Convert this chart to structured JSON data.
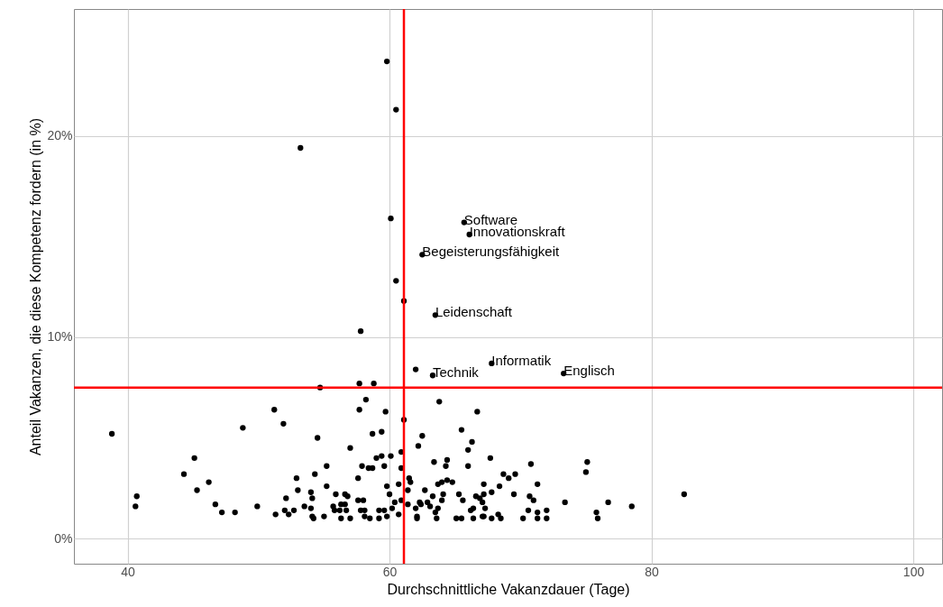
{
  "chart_data": {
    "type": "scatter",
    "xlabel": "Durchschnittliche Vakanzdauer (Tage)",
    "ylabel": "Anteil Vakanzen, die diese Kompetenz fordern (in %)",
    "xlim": [
      35.9,
      102.2
    ],
    "ylim": [
      -1.25,
      26.3
    ],
    "xticks": [
      40,
      60,
      80,
      100
    ],
    "yticks": [
      {
        "value": 0,
        "label": "0%"
      },
      {
        "value": 10,
        "label": "10%"
      },
      {
        "value": 20,
        "label": "20%"
      }
    ],
    "grid": true,
    "marker": "circle",
    "series": [
      {
        "color": "#000000",
        "x": [
          65.7,
          66.1,
          62.5,
          63.5,
          67.8,
          73.3,
          63.3,
          59.8,
          60.5,
          53.2,
          60.1,
          60.5,
          61.1,
          57.8,
          62.0,
          38.8,
          40.7,
          40.6,
          45.1,
          44.3,
          46.2,
          45.3,
          46.7,
          47.2,
          48.2,
          48.8,
          49.9,
          51.2,
          51.9,
          51.3,
          52.1,
          52.0,
          52.3,
          52.7,
          52.9,
          53.0,
          53.5,
          54.7,
          57.7,
          58.8,
          58.2,
          57.7,
          59.7,
          61.1,
          54.5,
          58.7,
          59.4,
          57.0,
          59.0,
          59.4,
          60.1,
          60.9,
          55.2,
          54.3,
          57.9,
          58.4,
          58.7,
          59.6,
          60.9,
          62.5,
          62.2,
          57.6,
          55.2,
          54.0,
          54.1,
          55.9,
          56.6,
          56.8,
          59.8,
          60.0,
          60.7,
          61.5,
          61.6,
          61.4,
          57.6,
          58.0,
          60.4,
          60.9,
          61.4,
          62.3,
          62.4,
          54.0,
          55.7,
          56.3,
          56.6,
          56.7,
          55.8,
          56.2,
          57.8,
          58.1,
          59.2,
          59.6,
          60.2,
          62.0,
          54.1,
          54.2,
          55.0,
          56.3,
          57.0,
          58.1,
          58.5,
          59.2,
          59.8,
          60.7,
          62.1,
          62.1,
          63.8,
          66.7,
          65.5,
          66.3,
          66.0,
          63.4,
          64.4,
          64.3,
          66.0,
          67.7,
          68.7,
          69.1,
          69.6,
          70.8,
          71.3,
          63.7,
          64.0,
          64.4,
          64.8,
          62.7,
          67.2,
          64.1,
          63.3,
          64.0,
          65.3,
          65.6,
          66.6,
          67.2,
          67.8,
          68.4,
          69.5,
          70.7,
          71.0,
          62.9,
          63.1,
          63.7,
          63.5,
          66.2,
          66.4,
          66.9,
          67.1,
          67.3,
          70.6,
          71.3,
          72.0,
          63.6,
          65.1,
          65.5,
          66.4,
          67.1,
          67.2,
          67.8,
          68.3,
          68.5,
          70.2,
          71.3,
          72.0,
          75.1,
          75.0,
          73.4,
          75.8,
          75.9,
          76.7,
          78.5,
          82.5
        ],
        "values": [
          15.7,
          15.1,
          14.1,
          11.1,
          8.7,
          8.2,
          8.1,
          23.7,
          21.3,
          19.4,
          15.9,
          12.8,
          11.8,
          10.3,
          8.4,
          5.2,
          2.1,
          1.6,
          4.0,
          3.2,
          2.8,
          2.4,
          1.7,
          1.3,
          1.3,
          5.5,
          1.6,
          6.4,
          5.7,
          1.2,
          2.0,
          1.4,
          1.2,
          1.4,
          3.0,
          2.4,
          1.6,
          7.5,
          7.7,
          7.7,
          6.9,
          6.4,
          6.3,
          5.9,
          5.0,
          5.2,
          5.3,
          4.5,
          4.0,
          4.1,
          4.1,
          4.3,
          3.6,
          3.2,
          3.6,
          3.5,
          3.5,
          3.6,
          3.5,
          5.1,
          4.6,
          3.0,
          2.6,
          2.3,
          2.0,
          2.2,
          2.2,
          2.1,
          2.6,
          2.2,
          2.7,
          3.0,
          2.8,
          2.4,
          1.9,
          1.9,
          1.8,
          1.9,
          1.7,
          1.8,
          1.7,
          1.5,
          1.6,
          1.7,
          1.7,
          1.4,
          1.4,
          1.4,
          1.4,
          1.4,
          1.4,
          1.4,
          1.5,
          1.5,
          1.1,
          1.0,
          1.1,
          1.0,
          1.0,
          1.1,
          1.0,
          1.0,
          1.1,
          1.2,
          1.1,
          1.0,
          6.8,
          6.3,
          5.4,
          4.8,
          4.4,
          3.8,
          3.9,
          3.6,
          3.6,
          4.0,
          3.2,
          3.0,
          3.2,
          3.7,
          2.7,
          2.7,
          2.8,
          2.9,
          2.8,
          2.4,
          2.7,
          2.2,
          2.1,
          1.9,
          2.2,
          1.9,
          2.1,
          2.2,
          2.3,
          2.6,
          2.2,
          2.1,
          1.9,
          1.8,
          1.6,
          1.5,
          1.3,
          1.4,
          1.5,
          2.0,
          1.8,
          1.5,
          1.4,
          1.3,
          1.4,
          1.0,
          1.0,
          1.0,
          1.0,
          1.1,
          1.1,
          1.0,
          1.2,
          1.0,
          1.0,
          1.0,
          1.0,
          3.8,
          3.3,
          1.8,
          1.3,
          1.0,
          1.8,
          1.6,
          2.2
        ]
      }
    ],
    "ref_lines": [
      {
        "axis": "x",
        "value": 61.1,
        "color": "#ff0000"
      },
      {
        "axis": "y",
        "value": 7.5,
        "color": "#ff0000"
      }
    ],
    "annotations": [
      {
        "text": "Software",
        "x": 65.7,
        "y": 15.7
      },
      {
        "text": "Innovationskraft",
        "x": 66.1,
        "y": 15.1
      },
      {
        "text": "Begeisterungsfähigkeit",
        "x": 62.5,
        "y": 14.1
      },
      {
        "text": "Leidenschaft",
        "x": 63.5,
        "y": 11.1
      },
      {
        "text": "Informatik",
        "x": 67.8,
        "y": 8.7
      },
      {
        "text": "Englisch",
        "x": 73.3,
        "y": 8.2
      },
      {
        "text": "Technik",
        "x": 63.3,
        "y": 8.1
      }
    ]
  }
}
